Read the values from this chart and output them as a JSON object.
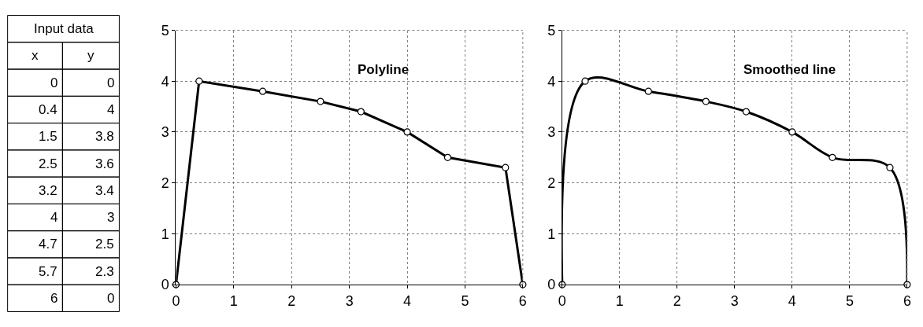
{
  "chart_data": [
    {
      "type": "other",
      "annotations": [
        "Input data",
        "x",
        "y",
        "0",
        "0",
        "0.4",
        "4",
        "1.5",
        "3.8",
        "2.5",
        "3.6",
        "3.2",
        "3.4",
        "4",
        "3",
        "4.7",
        "2.5",
        "5.7",
        "2.3",
        "6",
        "0"
      ]
    },
    {
      "type": "line",
      "x": [
        0,
        0.4,
        1.5,
        2.5,
        3.2,
        4,
        4.7,
        5.7,
        6
      ],
      "values": [
        0,
        4,
        3.8,
        3.6,
        3.4,
        3,
        2.5,
        2.3,
        0
      ],
      "color": "#000000",
      "marker": "circle",
      "line_style": "solid",
      "xlim": [
        0,
        6
      ],
      "ylim": [
        0,
        5
      ],
      "xticks": [
        0,
        1,
        2,
        3,
        4,
        5,
        6
      ],
      "yticks": [
        0,
        1,
        2,
        3,
        4,
        5
      ],
      "grid": true,
      "annotations": [
        "Polyline"
      ]
    },
    {
      "type": "line",
      "x": [
        0,
        0.4,
        1.5,
        2.5,
        3.2,
        4,
        4.7,
        5.7,
        6
      ],
      "values": [
        0,
        4,
        3.8,
        3.6,
        3.4,
        3,
        2.5,
        2.3,
        0
      ],
      "color": "#000000",
      "marker": "circle",
      "line_style": "solid",
      "xlim": [
        0,
        6
      ],
      "ylim": [
        0,
        5
      ],
      "xticks": [
        0,
        1,
        2,
        3,
        4,
        5,
        6
      ],
      "yticks": [
        0,
        1,
        2,
        3,
        4,
        5
      ],
      "grid": true,
      "annotations": [
        "Smoothed line"
      ]
    }
  ]
}
